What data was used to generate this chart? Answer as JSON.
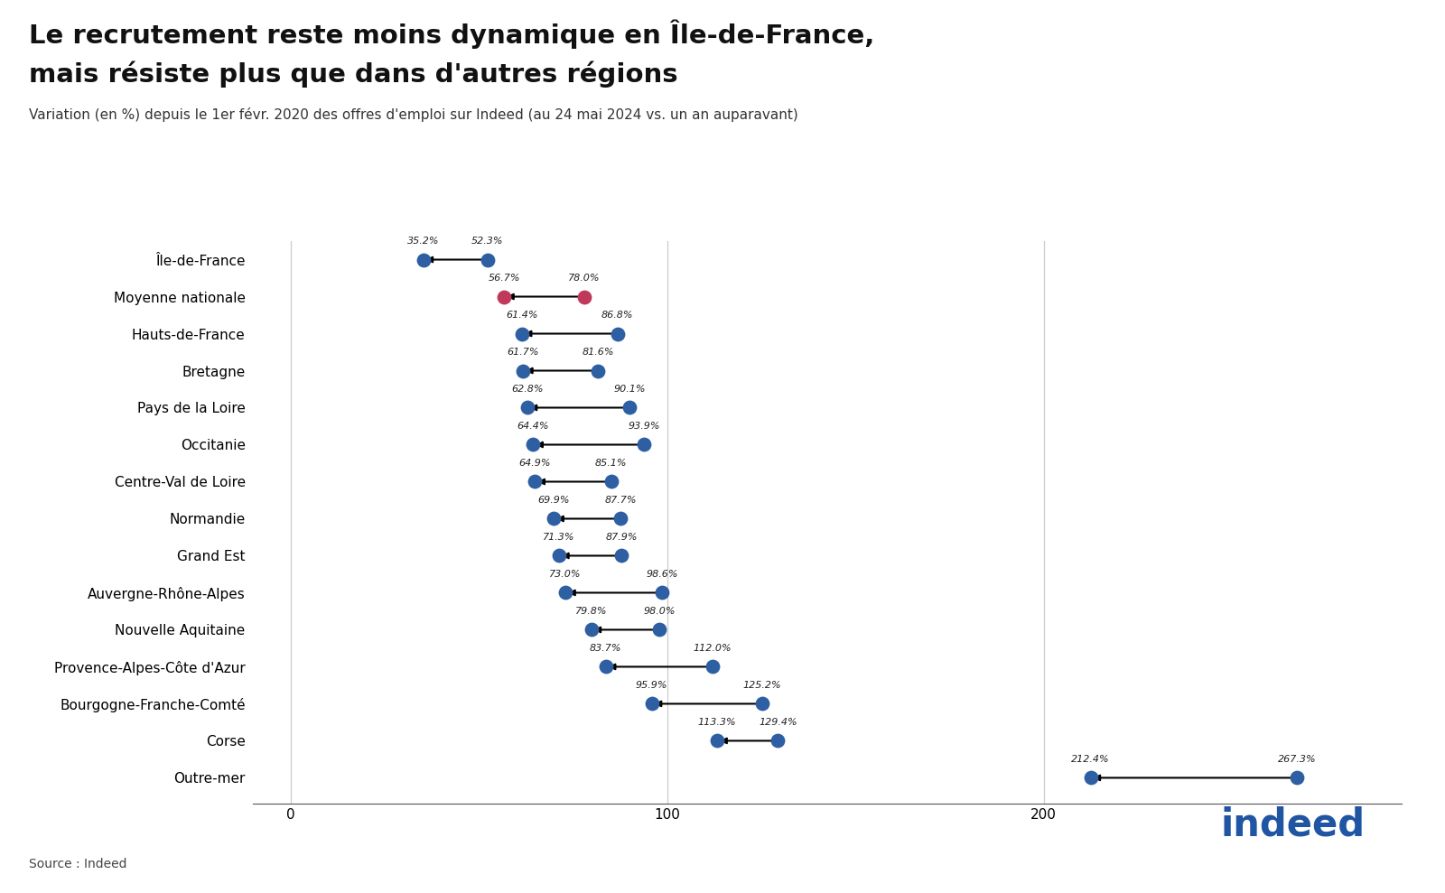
{
  "title_line1": "Le recrutement reste moins dynamique en Île-de-France,",
  "title_line2": "mais résiste plus que dans d'autres régions",
  "subtitle": "Variation (en %) depuis le 1er févr. 2020 des offres d'emploi sur Indeed (au 24 mai 2024 vs. un an auparavant)",
  "source": "Source : Indeed",
  "regions": [
    "Île-de-France",
    "Moyenne nationale",
    "Hauts-de-France",
    "Bretagne",
    "Pays de la Loire",
    "Occitanie",
    "Centre-Val de Loire",
    "Normandie",
    "Grand Est",
    "Auvergne-Rhône-Alpes",
    "Nouvelle Aquitaine",
    "Provence-Alpes-Côte d'Azur",
    "Bourgogne-Franche-Comté",
    "Corse",
    "Outre-mer"
  ],
  "val_current": [
    35.2,
    56.7,
    61.4,
    61.7,
    62.8,
    64.4,
    64.9,
    69.9,
    71.3,
    73.0,
    79.8,
    83.7,
    95.9,
    113.3,
    212.4
  ],
  "val_prev": [
    52.3,
    78.0,
    86.8,
    81.6,
    90.1,
    93.9,
    85.1,
    87.7,
    87.9,
    98.6,
    98.0,
    112.0,
    125.2,
    129.4,
    267.3
  ],
  "dot_color_normal": "#2e5fa3",
  "dot_color_moyenne": "#c0395a",
  "xlim": [
    -10,
    295
  ],
  "xticks": [
    0,
    100,
    200
  ],
  "background_color": "#ffffff",
  "grid_color": "#cccccc",
  "title_fontsize": 21,
  "subtitle_fontsize": 11,
  "ylabel_fontsize": 11,
  "xlabel_fontsize": 11,
  "label_fontsize": 8
}
